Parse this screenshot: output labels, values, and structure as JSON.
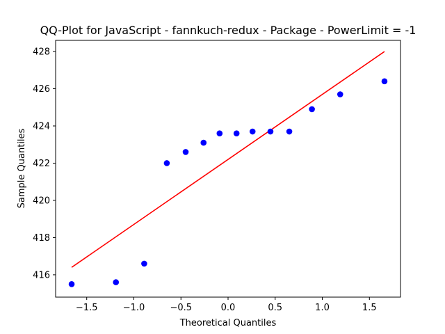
{
  "chart_data": {
    "type": "scatter",
    "title": "QQ-Plot for JavaScript - fannkuch-redux - Package - PowerLimit = -1",
    "xlabel": "Theoretical Quantiles",
    "ylabel": "Sample Quantiles",
    "xlim": [
      -1.83,
      1.83
    ],
    "ylim": [
      414.8,
      428.6
    ],
    "xticks": [
      -1.5,
      -1.0,
      -0.5,
      0.0,
      0.5,
      1.0,
      1.5
    ],
    "xtick_labels": [
      "−1.5",
      "−1.0",
      "−0.5",
      "0.0",
      "0.5",
      "1.0",
      "1.5"
    ],
    "yticks": [
      416,
      418,
      420,
      422,
      424,
      426,
      428
    ],
    "ytick_labels": [
      "416",
      "418",
      "420",
      "422",
      "424",
      "426",
      "428"
    ],
    "grid": false,
    "series": [
      {
        "kind": "points",
        "color": "#0000ff",
        "x": [
          -1.66,
          -1.19,
          -0.89,
          -0.65,
          -0.45,
          -0.26,
          -0.09,
          0.09,
          0.26,
          0.45,
          0.65,
          0.89,
          1.19,
          1.66
        ],
        "y": [
          415.5,
          415.6,
          416.6,
          422.0,
          422.6,
          423.1,
          423.6,
          423.6,
          423.7,
          423.7,
          423.7,
          424.9,
          425.7,
          426.4
        ]
      },
      {
        "kind": "line",
        "color": "#ff0000",
        "x": [
          -1.66,
          1.66
        ],
        "y": [
          416.4,
          428.0
        ]
      }
    ]
  }
}
